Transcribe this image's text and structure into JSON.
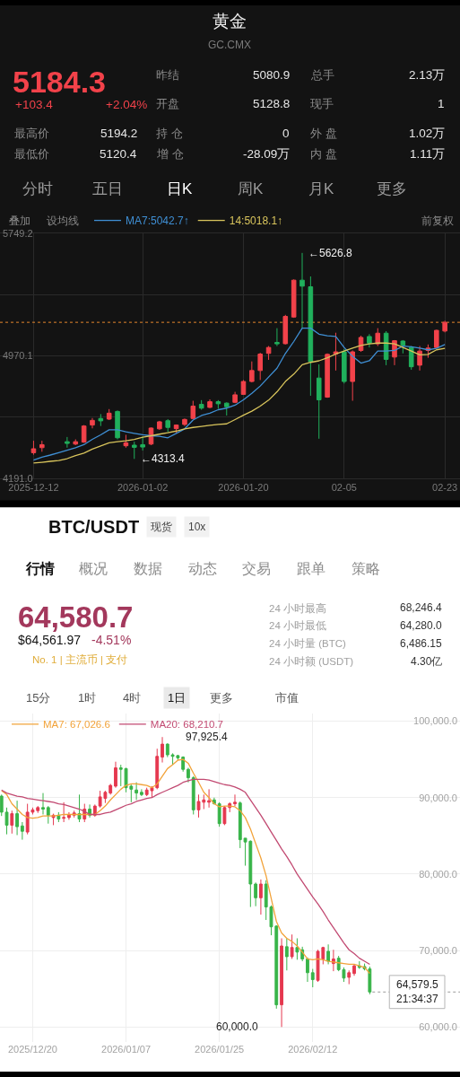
{
  "chart_data": [
    {
      "type": "other",
      "title": "黄金",
      "subtitle": "GC.CMX",
      "annotations": [
        "5184.3",
        "+103.4",
        "+2.04%",
        "昨结",
        "5080.9",
        "总手",
        "2.13万",
        "开盘",
        "5128.8",
        "现手",
        "1",
        "最高价",
        "5194.2",
        "持 仓",
        "0",
        "外 盘",
        "1.02万",
        "最低价",
        "5120.4",
        "增 仓",
        "-28.09万",
        "内 盘",
        "1.11万",
        "分时",
        "五日",
        "日K",
        "周K",
        "月K",
        "更多",
        "叠加",
        "设均线",
        "前复权"
      ]
    },
    {
      "type": "candlestick",
      "categories": [
        "2025-12-12",
        null,
        null,
        null,
        null,
        null,
        null,
        null,
        null,
        null,
        null,
        null,
        null,
        "2026-01-02",
        null,
        null,
        null,
        null,
        null,
        null,
        null,
        null,
        null,
        null,
        null,
        "2026-01-20",
        null,
        null,
        null,
        null,
        null,
        null,
        null,
        null,
        null,
        null,
        null,
        "02-05",
        null,
        null,
        null,
        null,
        null,
        null,
        null,
        null,
        null,
        null,
        null,
        "02-23"
      ],
      "ohlc": [
        [
          4353,
          4429,
          4340,
          4378
        ],
        [
          4385,
          4429,
          4359,
          4404
        ],
        null,
        null,
        [
          4423,
          4453,
          4385,
          4412
        ],
        [
          4408,
          4438,
          4401,
          4423
        ],
        [
          4420,
          4529,
          4416,
          4523
        ],
        [
          4529,
          4574,
          4508,
          4559
        ],
        [
          4571,
          4599,
          4523,
          4556
        ],
        [
          4567,
          4631,
          4561,
          4605
        ],
        [
          4616,
          4622,
          4438,
          4448
        ],
        [
          4397,
          4467,
          4385,
          4416
        ],
        [
          4401,
          4423,
          4313.4,
          4387
        ],
        [
          4404,
          4457,
          4367,
          4389
        ],
        [
          4408,
          4514,
          4401,
          4510
        ],
        [
          4505,
          4556,
          4499,
          4550
        ],
        [
          4557,
          4567,
          4484,
          4514
        ],
        [
          4506,
          4533,
          4480,
          4529
        ],
        [
          4533,
          4571,
          4523,
          4565
        ],
        [
          4571,
          4684,
          4567,
          4650
        ],
        [
          4661,
          4688,
          4627,
          4637
        ],
        [
          4642,
          4693,
          4637,
          4678
        ],
        [
          4678,
          4688,
          4633,
          4665
        ],
        [
          4669,
          4674,
          4590,
          4646
        ],
        [
          4674,
          4741,
          4669,
          4722
        ],
        [
          4725,
          4816,
          4722,
          4807
        ],
        [
          4807,
          4935,
          4801,
          4877
        ],
        [
          4877,
          4990,
          4816,
          4982
        ],
        [
          4986,
          5033,
          4945,
          5024
        ],
        [
          5056,
          5147,
          5033,
          5047
        ],
        [
          5048,
          5232,
          5043,
          5222
        ],
        [
          5218,
          5458,
          5213,
          5453
        ],
        [
          5453,
          5626.8,
          5147,
          5415
        ],
        [
          5411,
          5477,
          4716,
          4933
        ],
        [
          4829,
          4916,
          4442,
          4690
        ],
        [
          4707,
          4986,
          4703,
          4980
        ],
        [
          4982,
          5118,
          4877,
          4996
        ],
        [
          4996,
          5014,
          4794,
          4807
        ],
        [
          4807,
          5005,
          4684,
          4996
        ],
        [
          5005,
          5099,
          4996,
          5088
        ],
        [
          5094,
          5109,
          5024,
          5052
        ],
        [
          5047,
          5147,
          5033,
          5115
        ],
        [
          5115,
          5128,
          4911,
          4948
        ],
        [
          4963,
          5071,
          4911,
          5067
        ],
        [
          5065,
          5071,
          4986,
          5037
        ],
        [
          5024,
          5033,
          4882,
          4901
        ],
        [
          4911,
          5033,
          4877,
          5001
        ],
        [
          5005,
          5043,
          4958,
          5020
        ],
        [
          5024,
          5137,
          5020,
          5133
        ],
        [
          5128.8,
          5194.2,
          5120.4,
          5184.3
        ]
      ],
      "colors": [
        "#f2424a",
        "#f2424a",
        null,
        null,
        "#20b05c",
        "#f2424a",
        "#f2424a",
        "#f2424a",
        "#20b05c",
        "#f2424a",
        "#20b05c",
        "#f2424a",
        "#20b05c",
        "#20b05c",
        "#f2424a",
        "#f2424a",
        "#20b05c",
        "#f2424a",
        "#f2424a",
        "#f2424a",
        "#20b05c",
        "#f2424a",
        "#20b05c",
        "#20b05c",
        "#f2424a",
        "#f2424a",
        "#f2424a",
        "#f2424a",
        "#f2424a",
        "#20b05c",
        "#f2424a",
        "#f2424a",
        "#20b05c",
        "#20b05c",
        "#20b05c",
        "#f2424a",
        "#f2424a",
        "#20b05c",
        "#f2424a",
        "#f2424a",
        "#20b05c",
        "#f2424a",
        "#20b05c",
        "#f2424a",
        "#20b05c",
        "#20b05c",
        "#f2424a",
        "#f2424a",
        "#f2424a",
        "#f2424a"
      ],
      "series": [
        {
          "type": "line",
          "name": "MA7:5042.7↑",
          "color": "#3f8fd4",
          "values": [
            4306,
            4325,
            4338,
            4353,
            4369,
            4385,
            4404,
            4438,
            4467,
            4499,
            4499,
            4486,
            4476,
            4467,
            4461,
            4457,
            4448,
            4476,
            4505,
            4561,
            4590,
            4605,
            4627,
            4637,
            4656,
            4690,
            4731,
            4778,
            4835,
            4892,
            4986,
            5062,
            5147,
            5147,
            5109,
            5099,
            5094,
            5024,
            4967,
            4924,
            4939,
            5001,
            5001,
            5005,
            5033,
            5028,
            5020,
            5009,
            5018,
            5043
          ]
        },
        {
          "type": "line",
          "name": "14:5018.1↑",
          "color": "#d8c45c",
          "values": [
            4287,
            4292,
            4298,
            4303,
            4315,
            4335,
            4350,
            4376,
            4396,
            4416,
            4423,
            4429,
            4438,
            4452,
            4461,
            4471,
            4480,
            4491,
            4505,
            4514,
            4520,
            4527,
            4533,
            4537,
            4564,
            4592,
            4618,
            4650,
            4688,
            4741,
            4807,
            4854,
            4914,
            4929,
            4939,
            4958,
            4982,
            5001,
            5020,
            5037,
            5047,
            5052,
            5052,
            5047,
            5024,
            5001,
            4977,
            4980,
            5009,
            5018
          ]
        }
      ],
      "ylim": [
        4191.0,
        5749.2
      ],
      "yticks": [
        {
          "value": 5749.2,
          "label": "5749.2"
        },
        {
          "value": 5359.65,
          "label": null
        },
        {
          "value": 4970.1,
          "label": "4970.1"
        },
        {
          "value": 4580.55,
          "label": null
        },
        {
          "value": 4191.0,
          "label": "4191.0"
        }
      ],
      "ref_lines": [
        {
          "axis": "y",
          "value": 5184.3,
          "color": "#e6862e",
          "line_style": "dotted"
        }
      ],
      "annotations": [
        "←5626.8",
        "←4313.4"
      ],
      "grid": true,
      "legend": "top left",
      "line_style": "solid"
    },
    {
      "type": "other",
      "title": "BTC/USDT",
      "annotations": [
        "现货",
        "10x",
        "行情",
        "概况",
        "数据",
        "动态",
        "交易",
        "跟单",
        "策略",
        "64,580.7",
        "$64,561.97",
        "-4.51%",
        "No. 1 | 主流币 | 支付",
        "24 小时最高",
        "68,246.4",
        "24 小时最低",
        "64,280.0",
        "24 小时量 (BTC)",
        "6,486.15",
        "24 小时额 (USDT)",
        "4.30亿",
        "15分",
        "1时",
        "4时",
        "1日",
        "更多",
        "市值"
      ]
    },
    {
      "type": "candlestick",
      "categories": [
        null,
        null,
        null,
        null,
        null,
        null,
        "2025/12/20",
        null,
        null,
        null,
        null,
        null,
        null,
        null,
        null,
        null,
        null,
        null,
        null,
        null,
        null,
        null,
        null,
        null,
        "2026/01/07",
        null,
        null,
        null,
        null,
        null,
        null,
        null,
        null,
        null,
        null,
        null,
        null,
        null,
        null,
        null,
        null,
        null,
        "2026/01/25",
        null,
        null,
        null,
        null,
        null,
        null,
        null,
        null,
        null,
        null,
        null,
        null,
        null,
        null,
        null,
        null,
        null,
        "2026/02/12",
        null,
        null,
        null,
        null,
        null,
        null,
        null,
        null,
        null,
        null,
        null
      ],
      "ohlc": [
        [
          90200,
          90400,
          87600,
          88100
        ],
        [
          88100,
          88700,
          85200,
          86400
        ],
        [
          86400,
          88300,
          85300,
          87900
        ],
        [
          87900,
          89600,
          85100,
          86200
        ],
        [
          86300,
          86800,
          84500,
          85600
        ],
        [
          85500,
          89200,
          85200,
          88100
        ],
        [
          88100,
          88700,
          87800,
          88400
        ],
        [
          88300,
          88900,
          88000,
          88700
        ],
        [
          88700,
          90600,
          87800,
          88500
        ],
        [
          88700,
          88900,
          86600,
          87700
        ],
        [
          87400,
          87900,
          86400,
          87700
        ],
        [
          87700,
          88100,
          86800,
          87200
        ],
        [
          87300,
          89400,
          86800,
          87400
        ],
        [
          87400,
          88100,
          87100,
          87800
        ],
        [
          87700,
          88300,
          87400,
          88000
        ],
        [
          87900,
          90400,
          86800,
          87200
        ],
        [
          87200,
          89200,
          86800,
          88500
        ],
        [
          88500,
          89100,
          87400,
          87700
        ],
        [
          87700,
          89100,
          87500,
          88900
        ],
        [
          88900,
          90900,
          88700,
          90100
        ],
        [
          89900,
          90900,
          89300,
          90700
        ],
        [
          90600,
          91800,
          90400,
          91600
        ],
        [
          91500,
          94700,
          91300,
          93900
        ],
        [
          93900,
          94300,
          91500,
          93700
        ],
        [
          93800,
          93900,
          90700,
          91300
        ],
        [
          91500,
          91700,
          89400,
          91100
        ],
        [
          91000,
          92000,
          89700,
          90600
        ],
        [
          90700,
          91100,
          90200,
          90400
        ],
        [
          90400,
          91300,
          90200,
          91000
        ],
        [
          90900,
          91500,
          90000,
          91300
        ],
        [
          91300,
          96400,
          91100,
          95400
        ],
        [
          95300,
          97925.4,
          94600,
          97000
        ],
        [
          97000,
          97100,
          95300,
          95600
        ],
        [
          95600,
          95800,
          94300,
          95400
        ],
        [
          95500,
          95600,
          94900,
          95200
        ],
        [
          95300,
          95400,
          93400,
          93700
        ],
        [
          93700,
          93900,
          92000,
          92600
        ],
        [
          92600,
          92800,
          87800,
          88400
        ],
        [
          88400,
          90400,
          87400,
          89500
        ],
        [
          89400,
          90400,
          88500,
          89700
        ],
        [
          89400,
          91100,
          88700,
          89600
        ],
        [
          89700,
          90000,
          89100,
          89200
        ],
        [
          89200,
          89400,
          86200,
          86600
        ],
        [
          86600,
          88900,
          86400,
          88700
        ],
        [
          88700,
          89400,
          88100,
          89200
        ],
        [
          89200,
          90400,
          88900,
          89400
        ],
        [
          89300,
          89500,
          83400,
          84500
        ],
        [
          84700,
          84700,
          81100,
          84200
        ],
        [
          84300,
          84400,
          75700,
          78700
        ],
        [
          78700,
          78900,
          75800,
          76900
        ],
        [
          76900,
          79300,
          74700,
          78700
        ],
        [
          78700,
          79200,
          74000,
          75700
        ],
        [
          75700,
          75900,
          72000,
          73100
        ],
        [
          73200,
          73300,
          62400,
          62900
        ],
        [
          62900,
          71600,
          60000.0,
          70600
        ],
        [
          70500,
          71600,
          67400,
          69200
        ],
        [
          69200,
          72100,
          68900,
          70400
        ],
        [
          70400,
          71600,
          68800,
          69800
        ],
        [
          70100,
          70500,
          68600,
          68900
        ],
        [
          68900,
          69100,
          65900,
          67100
        ],
        [
          67100,
          67600,
          65200,
          66200
        ],
        [
          66100,
          70100,
          65900,
          69900
        ],
        [
          68900,
          70500,
          68200,
          70400
        ],
        [
          69900,
          70800,
          68200,
          68600
        ],
        [
          68300,
          70100,
          67300,
          68900
        ],
        [
          69000,
          69300,
          67300,
          67500
        ],
        [
          67500,
          67800,
          65900,
          66400
        ],
        [
          66500,
          67400,
          65600,
          67100
        ],
        [
          67000,
          68200,
          66700,
          68000
        ],
        [
          68000,
          68600,
          67600,
          67800
        ],
        [
          67900,
          68300,
          67400,
          67600
        ],
        [
          67600,
          67900,
          64280.0,
          64579.5
        ]
      ],
      "colors": [
        "#38b449",
        "#38b449",
        "#e5384f",
        "#38b449",
        "#38b449",
        "#e5384f",
        "#e5384f",
        "#e5384f",
        "#38b449",
        "#38b449",
        "#e5384f",
        "#38b449",
        "#e5384f",
        "#e5384f",
        "#e5384f",
        "#38b449",
        "#e5384f",
        "#38b449",
        "#e5384f",
        "#e5384f",
        "#e5384f",
        "#e5384f",
        "#e5384f",
        "#38b449",
        "#38b449",
        "#38b449",
        "#38b449",
        "#38b449",
        "#e5384f",
        "#e5384f",
        "#e5384f",
        "#e5384f",
        "#38b449",
        "#38b449",
        "#38b449",
        "#38b449",
        "#38b449",
        "#38b449",
        "#e5384f",
        "#e5384f",
        "#e5384f",
        "#38b449",
        "#38b449",
        "#e5384f",
        "#e5384f",
        "#e5384f",
        "#38b449",
        "#38b449",
        "#38b449",
        "#38b449",
        "#e5384f",
        "#38b449",
        "#38b449",
        "#38b449",
        "#e5384f",
        "#38b449",
        "#e5384f",
        "#38b449",
        "#38b449",
        "#38b449",
        "#38b449",
        "#e5384f",
        "#e5384f",
        "#38b449",
        "#e5384f",
        "#38b449",
        "#38b449",
        "#e5384f",
        "#e5384f",
        "#38b449",
        "#38b449",
        "#38b449"
      ],
      "series": [
        {
          "type": "line",
          "name": "MA7: 67,026.6",
          "color": "#f2a33a",
          "values": [
            90900,
            90400,
            89200,
            88500,
            87800,
            87400,
            87300,
            87400,
            87600,
            87600,
            87600,
            87700,
            87800,
            87800,
            87800,
            87800,
            87800,
            87800,
            87800,
            88300,
            88900,
            89700,
            90400,
            91100,
            91600,
            91800,
            91800,
            91700,
            91600,
            91300,
            91800,
            92800,
            93800,
            94300,
            94900,
            95000,
            94500,
            93200,
            92000,
            90700,
            90000,
            89200,
            88800,
            88900,
            88900,
            88800,
            88300,
            87400,
            85900,
            84000,
            82100,
            79800,
            76800,
            73800,
            72300,
            71600,
            71200,
            70600,
            69800,
            68900,
            68800,
            68900,
            68800,
            68600,
            68500,
            68400,
            68300,
            68200,
            68200,
            68000,
            67800,
            67000
          ]
        },
        {
          "type": "line",
          "name": "MA20: 68,210.7",
          "color": "#c24a72",
          "values": [
            91000,
            90600,
            90400,
            90200,
            90100,
            89900,
            89800,
            89700,
            89600,
            89500,
            89400,
            89200,
            89100,
            88900,
            88700,
            88500,
            88200,
            87800,
            87800,
            87800,
            88000,
            88100,
            88400,
            88700,
            89000,
            89200,
            89500,
            89700,
            89900,
            90000,
            90400,
            90700,
            91000,
            91300,
            91600,
            92000,
            92200,
            92400,
            92400,
            92400,
            92300,
            92100,
            91900,
            91700,
            91600,
            91400,
            91100,
            90700,
            89700,
            88700,
            87700,
            86600,
            85500,
            84400,
            83300,
            82300,
            81200,
            80000,
            79000,
            78000,
            77000,
            76100,
            75100,
            74000,
            73000,
            72000,
            71000,
            70100,
            69600,
            69000,
            68600,
            68200
          ]
        }
      ],
      "ylim": [
        58000,
        101000
      ],
      "yticks": [
        {
          "value": 60000,
          "label": "60,000.0"
        },
        {
          "value": 70000,
          "label": "70,000.0"
        },
        {
          "value": 80000,
          "label": "80,000.0"
        },
        {
          "value": 90000,
          "label": "90,000.0"
        },
        {
          "value": 100000,
          "label": "100,000.0"
        }
      ],
      "ref_lines": [
        {
          "axis": "y",
          "value": 64579.5,
          "label": "64,579.5\n21:34:37",
          "color": "#9a9a9a",
          "line_style": "dotted"
        }
      ],
      "annotations": [
        "97,925.4",
        "60,000.0"
      ],
      "grid": true,
      "legend": "top left",
      "line_style": "solid"
    }
  ]
}
